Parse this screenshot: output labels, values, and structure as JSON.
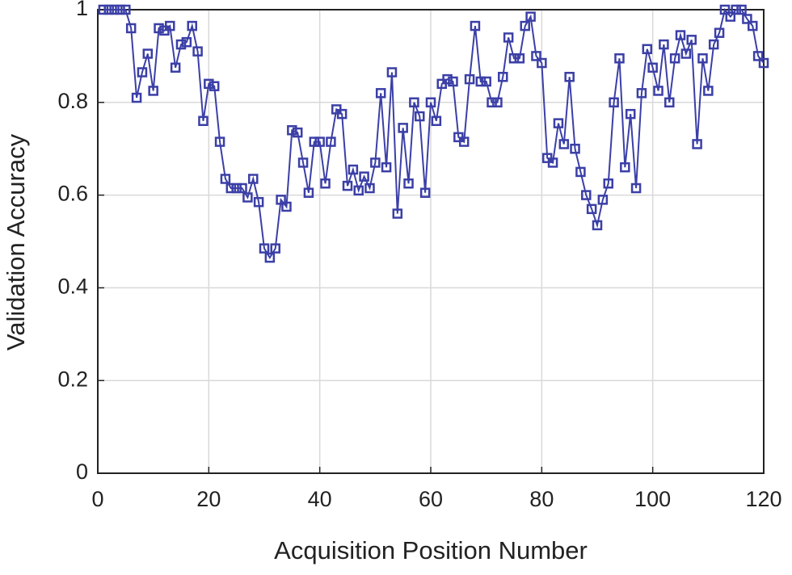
{
  "chart_data": {
    "type": "line",
    "x_label": "Acquisition Position Number",
    "y_label": "Validation Accuracy",
    "x": [
      1,
      2,
      3,
      4,
      5,
      6,
      7,
      8,
      9,
      10,
      11,
      12,
      13,
      14,
      15,
      16,
      17,
      18,
      19,
      20,
      21,
      22,
      23,
      24,
      25,
      26,
      27,
      28,
      29,
      30,
      31,
      32,
      33,
      34,
      35,
      36,
      37,
      38,
      39,
      40,
      41,
      42,
      43,
      44,
      45,
      46,
      47,
      48,
      49,
      50,
      51,
      52,
      53,
      54,
      55,
      56,
      57,
      58,
      59,
      60,
      61,
      62,
      63,
      64,
      65,
      66,
      67,
      68,
      69,
      70,
      71,
      72,
      73,
      74,
      75,
      76,
      77,
      78,
      79,
      80,
      81,
      82,
      83,
      84,
      85,
      86,
      87,
      88,
      89,
      90,
      91,
      92,
      93,
      94,
      95,
      96,
      97,
      98,
      99,
      100,
      101,
      102,
      103,
      104,
      105,
      106,
      107,
      108,
      109,
      110,
      111,
      112,
      113,
      114,
      115,
      116,
      117,
      118,
      119,
      120
    ],
    "series": [
      {
        "color": "#3b3fa6",
        "values": [
          1,
          1,
          1,
          1,
          1,
          0.96,
          0.81,
          0.865,
          0.905,
          0.825,
          0.96,
          0.955,
          0.965,
          0.875,
          0.925,
          0.93,
          0.965,
          0.91,
          0.76,
          0.84,
          0.835,
          0.715,
          0.635,
          0.615,
          0.615,
          0.615,
          0.595,
          0.635,
          0.585,
          0.485,
          0.465,
          0.485,
          0.59,
          0.575,
          0.74,
          0.735,
          0.67,
          0.605,
          0.715,
          0.715,
          0.625,
          0.715,
          0.785,
          0.775,
          0.62,
          0.655,
          0.61,
          0.64,
          0.615,
          0.67,
          0.82,
          0.66,
          0.865,
          0.56,
          0.745,
          0.625,
          0.8,
          0.77,
          0.605,
          0.8,
          0.76,
          0.84,
          0.85,
          0.845,
          0.725,
          0.715,
          0.85,
          0.965,
          0.845,
          0.845,
          0.8,
          0.8,
          0.855,
          0.94,
          0.895,
          0.895,
          0.965,
          0.985,
          0.9,
          0.885,
          0.68,
          0.67,
          0.755,
          0.71,
          0.855,
          0.7,
          0.65,
          0.6,
          0.57,
          0.535,
          0.59,
          0.625,
          0.8,
          0.895,
          0.66,
          0.775,
          0.615,
          0.82,
          0.915,
          0.875,
          0.825,
          0.925,
          0.8,
          0.895,
          0.945,
          0.905,
          0.935,
          0.71,
          0.895,
          0.825,
          0.925,
          0.95,
          1,
          0.985,
          1,
          1,
          0.98,
          0.965,
          0.9,
          0.885
        ]
      }
    ],
    "xlim": [
      0,
      120
    ],
    "xticks": [
      0,
      20,
      40,
      60,
      80,
      100,
      120
    ],
    "ylim": [
      0,
      1
    ],
    "yticks": [
      0,
      0.2,
      0.4,
      0.6,
      0.8,
      1
    ],
    "grid": true,
    "markers": "square"
  }
}
